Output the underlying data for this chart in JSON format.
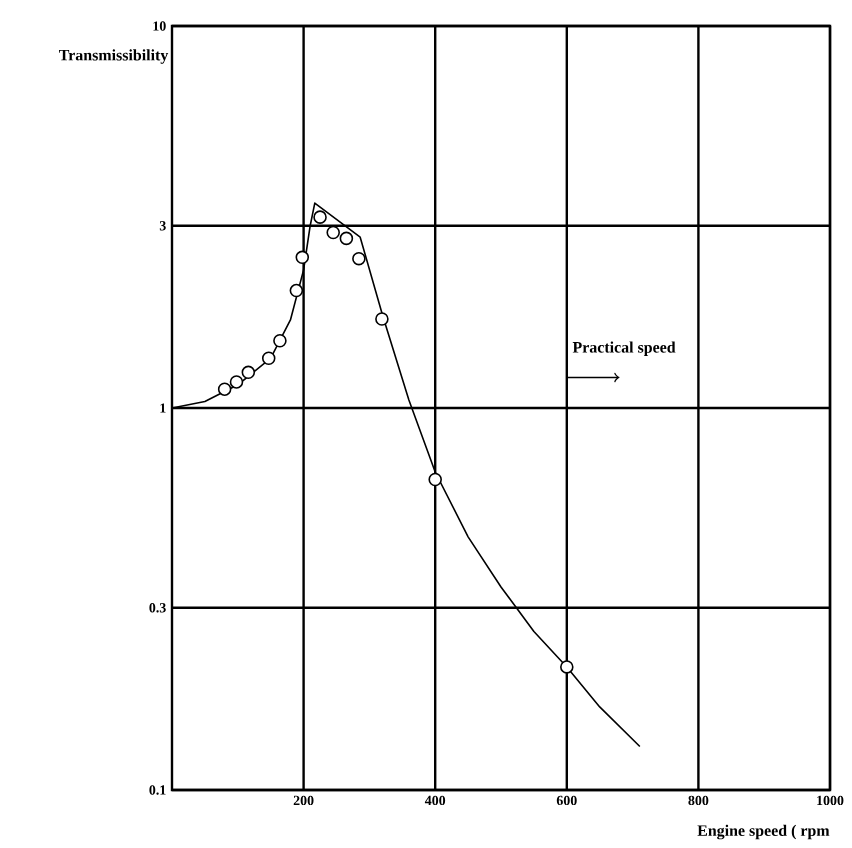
{
  "chart_data": {
    "type": "line",
    "xlabel": "Engine speed ( rpm",
    "ylabel": "Transmissibility",
    "xlim": [
      0,
      1000
    ],
    "xticks": [
      200,
      400,
      600,
      800,
      1000
    ],
    "ylim": [
      0.1,
      10
    ],
    "yticks": [
      0.1,
      0.3,
      1,
      3,
      10
    ],
    "log": "y",
    "grid": true,
    "series": [
      {
        "color": "#000000",
        "marker": "none",
        "x": [
          0,
          50,
          100,
          150,
          180,
          200,
          210,
          217,
          286,
          320,
          360,
          400,
          450,
          500,
          550,
          600,
          650,
          711
        ],
        "values": [
          1,
          1.04,
          1.15,
          1.35,
          1.7,
          2.3,
          3.0,
          3.44,
          2.8,
          1.75,
          1.05,
          0.68,
          0.46,
          0.34,
          0.26,
          0.21,
          0.165,
          0.13
        ]
      },
      {
        "type": "scatter",
        "color": "#000000",
        "marker": "circle",
        "x": [
          80,
          98,
          116,
          147,
          164,
          189,
          198,
          225,
          245,
          265,
          284,
          319,
          400,
          600
        ],
        "values": [
          1.12,
          1.17,
          1.24,
          1.35,
          1.5,
          2.03,
          2.48,
          3.16,
          2.88,
          2.78,
          2.46,
          1.71,
          0.65,
          0.21
        ]
      }
    ],
    "annotations": [
      "Practical speed"
    ]
  }
}
